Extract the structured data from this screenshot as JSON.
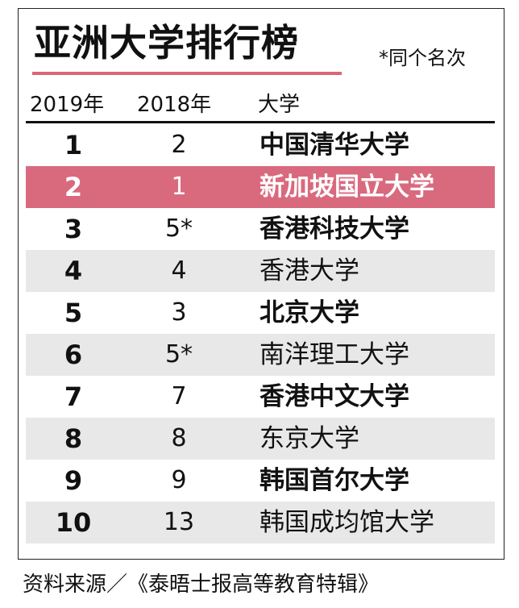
{
  "title": "亚洲大学排行榜",
  "note": "*同个名次",
  "colors": {
    "accent": "#d96a7e",
    "underline": "#d9667a",
    "shade": "#e8e8e8"
  },
  "headers": {
    "year2019": "2019年",
    "year2018": "2018年",
    "university": "大学"
  },
  "rows": [
    {
      "rank2019": "1",
      "rank2018": "2",
      "name": "中国清华大学"
    },
    {
      "rank2019": "2",
      "rank2018": "1",
      "name": "新加坡国立大学"
    },
    {
      "rank2019": "3",
      "rank2018": "5*",
      "name": "香港科技大学"
    },
    {
      "rank2019": "4",
      "rank2018": "4",
      "name": "香港大学"
    },
    {
      "rank2019": "5",
      "rank2018": "3",
      "name": "北京大学"
    },
    {
      "rank2019": "6",
      "rank2018": "5*",
      "name": "南洋理工大学"
    },
    {
      "rank2019": "7",
      "rank2018": "7",
      "name": "香港中文大学"
    },
    {
      "rank2019": "8",
      "rank2018": "8",
      "name": "东京大学"
    },
    {
      "rank2019": "9",
      "rank2018": "9",
      "name": "韩国首尔大学"
    },
    {
      "rank2019": "10",
      "rank2018": "13",
      "name": "韩国成均馆大学"
    }
  ],
  "source": "资料来源／《泰晤士报高等教育特辑》"
}
